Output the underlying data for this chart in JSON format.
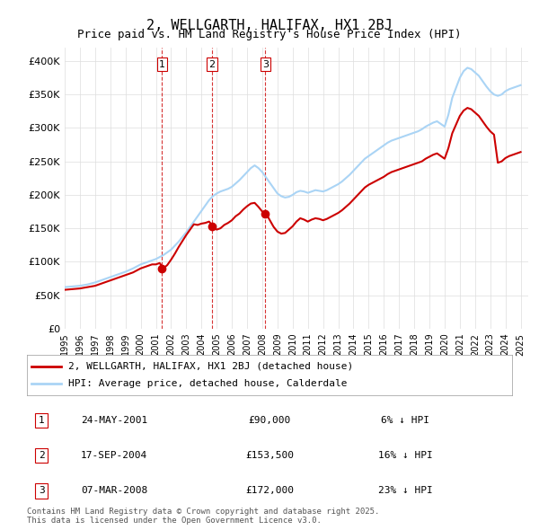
{
  "title": "2, WELLGARTH, HALIFAX, HX1 2BJ",
  "subtitle": "Price paid vs. HM Land Registry's House Price Index (HPI)",
  "ylabel_ticks": [
    "£0",
    "£50K",
    "£100K",
    "£150K",
    "£200K",
    "£250K",
    "£300K",
    "£350K",
    "£400K"
  ],
  "ytick_values": [
    0,
    50000,
    100000,
    150000,
    200000,
    250000,
    300000,
    350000,
    400000
  ],
  "ylim": [
    0,
    420000
  ],
  "xlim_start": 1995.0,
  "xlim_end": 2025.5,
  "hpi_color": "#aad4f5",
  "property_color": "#cc0000",
  "vline_color": "#cc0000",
  "grid_color": "#dddddd",
  "background_color": "#ffffff",
  "transactions": [
    {
      "num": 1,
      "date": "24-MAY-2001",
      "price": 90000,
      "pct": "6% ↓ HPI",
      "year": 2001.4
    },
    {
      "num": 2,
      "date": "17-SEP-2004",
      "price": 153500,
      "pct": "16% ↓ HPI",
      "year": 2004.7
    },
    {
      "num": 3,
      "date": "07-MAR-2008",
      "price": 172000,
      "pct": "23% ↓ HPI",
      "year": 2008.2
    }
  ],
  "legend_property": "2, WELLGARTH, HALIFAX, HX1 2BJ (detached house)",
  "legend_hpi": "HPI: Average price, detached house, Calderdale",
  "footnote": "Contains HM Land Registry data © Crown copyright and database right 2025.\nThis data is licensed under the Open Government Licence v3.0.",
  "hpi_data_x": [
    1995.0,
    1995.25,
    1995.5,
    1995.75,
    1996.0,
    1996.25,
    1996.5,
    1996.75,
    1997.0,
    1997.25,
    1997.5,
    1997.75,
    1998.0,
    1998.25,
    1998.5,
    1998.75,
    1999.0,
    1999.25,
    1999.5,
    1999.75,
    2000.0,
    2000.25,
    2000.5,
    2000.75,
    2001.0,
    2001.25,
    2001.5,
    2001.75,
    2002.0,
    2002.25,
    2002.5,
    2002.75,
    2003.0,
    2003.25,
    2003.5,
    2003.75,
    2004.0,
    2004.25,
    2004.5,
    2004.75,
    2005.0,
    2005.25,
    2005.5,
    2005.75,
    2006.0,
    2006.25,
    2006.5,
    2006.75,
    2007.0,
    2007.25,
    2007.5,
    2007.75,
    2008.0,
    2008.25,
    2008.5,
    2008.75,
    2009.0,
    2009.25,
    2009.5,
    2009.75,
    2010.0,
    2010.25,
    2010.5,
    2010.75,
    2011.0,
    2011.25,
    2011.5,
    2011.75,
    2012.0,
    2012.25,
    2012.5,
    2012.75,
    2013.0,
    2013.25,
    2013.5,
    2013.75,
    2014.0,
    2014.25,
    2014.5,
    2014.75,
    2015.0,
    2015.25,
    2015.5,
    2015.75,
    2016.0,
    2016.25,
    2016.5,
    2016.75,
    2017.0,
    2017.25,
    2017.5,
    2017.75,
    2018.0,
    2018.25,
    2018.5,
    2018.75,
    2019.0,
    2019.25,
    2019.5,
    2019.75,
    2020.0,
    2020.25,
    2020.5,
    2020.75,
    2021.0,
    2021.25,
    2021.5,
    2021.75,
    2022.0,
    2022.25,
    2022.5,
    2022.75,
    2023.0,
    2023.25,
    2023.5,
    2023.75,
    2024.0,
    2024.25,
    2024.5,
    2024.75,
    2025.0
  ],
  "hpi_data_y": [
    62000,
    62500,
    63000,
    63500,
    64000,
    65000,
    66000,
    67500,
    69000,
    71000,
    73000,
    75000,
    77000,
    79000,
    81000,
    83000,
    85000,
    87500,
    90000,
    93000,
    96000,
    98000,
    100000,
    102000,
    104000,
    107000,
    110000,
    114000,
    118000,
    124000,
    130000,
    137000,
    144000,
    152000,
    160000,
    168000,
    176000,
    184000,
    192000,
    198000,
    202000,
    205000,
    207000,
    209000,
    212000,
    217000,
    222000,
    228000,
    234000,
    240000,
    244000,
    240000,
    234000,
    226000,
    218000,
    210000,
    202000,
    198000,
    196000,
    197000,
    200000,
    204000,
    206000,
    205000,
    203000,
    205000,
    207000,
    206000,
    205000,
    207000,
    210000,
    213000,
    216000,
    220000,
    225000,
    230000,
    236000,
    242000,
    248000,
    254000,
    258000,
    262000,
    266000,
    270000,
    274000,
    278000,
    281000,
    283000,
    285000,
    287000,
    289000,
    291000,
    293000,
    295000,
    298000,
    302000,
    305000,
    308000,
    310000,
    306000,
    302000,
    320000,
    345000,
    360000,
    375000,
    385000,
    390000,
    388000,
    383000,
    378000,
    370000,
    362000,
    355000,
    350000,
    348000,
    350000,
    355000,
    358000,
    360000,
    362000,
    364000
  ],
  "prop_data_x": [
    1995.0,
    1995.25,
    1995.5,
    1995.75,
    1996.0,
    1996.25,
    1996.5,
    1996.75,
    1997.0,
    1997.25,
    1997.5,
    1997.75,
    1998.0,
    1998.25,
    1998.5,
    1998.75,
    1999.0,
    1999.25,
    1999.5,
    1999.75,
    2000.0,
    2000.25,
    2000.5,
    2000.75,
    2001.0,
    2001.25,
    2001.5,
    2001.75,
    2002.0,
    2002.25,
    2002.5,
    2002.75,
    2003.0,
    2003.25,
    2003.5,
    2003.75,
    2004.0,
    2004.25,
    2004.5,
    2004.75,
    2005.0,
    2005.25,
    2005.5,
    2005.75,
    2006.0,
    2006.25,
    2006.5,
    2006.75,
    2007.0,
    2007.25,
    2007.5,
    2007.75,
    2008.0,
    2008.25,
    2008.5,
    2008.75,
    2009.0,
    2009.25,
    2009.5,
    2009.75,
    2010.0,
    2010.25,
    2010.5,
    2010.75,
    2011.0,
    2011.25,
    2011.5,
    2011.75,
    2012.0,
    2012.25,
    2012.5,
    2012.75,
    2013.0,
    2013.25,
    2013.5,
    2013.75,
    2014.0,
    2014.25,
    2014.5,
    2014.75,
    2015.0,
    2015.25,
    2015.5,
    2015.75,
    2016.0,
    2016.25,
    2016.5,
    2016.75,
    2017.0,
    2017.25,
    2017.5,
    2017.75,
    2018.0,
    2018.25,
    2018.5,
    2018.75,
    2019.0,
    2019.25,
    2019.5,
    2019.75,
    2020.0,
    2020.25,
    2020.5,
    2020.75,
    2021.0,
    2021.25,
    2021.5,
    2021.75,
    2022.0,
    2022.25,
    2022.5,
    2022.75,
    2023.0,
    2023.25,
    2023.5,
    2023.75,
    2024.0,
    2024.25,
    2024.5,
    2024.75,
    2025.0
  ],
  "prop_data_y": [
    58000,
    58500,
    59000,
    59500,
    60000,
    61000,
    62000,
    63000,
    64000,
    66000,
    68000,
    70000,
    72000,
    74000,
    76000,
    78000,
    80000,
    82000,
    84000,
    87000,
    90000,
    92000,
    94000,
    96000,
    96000,
    98000,
    90000,
    95000,
    103000,
    112000,
    122000,
    131000,
    140000,
    148000,
    156000,
    155000,
    157000,
    158000,
    160000,
    153500,
    148000,
    150000,
    155000,
    158000,
    162000,
    168000,
    172000,
    178000,
    183000,
    187000,
    188000,
    182000,
    175000,
    172000,
    162000,
    152000,
    145000,
    142000,
    143000,
    148000,
    153000,
    160000,
    165000,
    163000,
    160000,
    163000,
    165000,
    164000,
    162000,
    164000,
    167000,
    170000,
    173000,
    177000,
    182000,
    187000,
    193000,
    199000,
    205000,
    211000,
    215000,
    218000,
    221000,
    224000,
    227000,
    231000,
    234000,
    236000,
    238000,
    240000,
    242000,
    244000,
    246000,
    248000,
    250000,
    254000,
    257000,
    260000,
    262000,
    258000,
    254000,
    270000,
    292000,
    305000,
    318000,
    326000,
    330000,
    328000,
    323000,
    318000,
    310000,
    302000,
    295000,
    290000,
    248000,
    250000,
    255000,
    258000,
    260000,
    262000,
    264000
  ]
}
